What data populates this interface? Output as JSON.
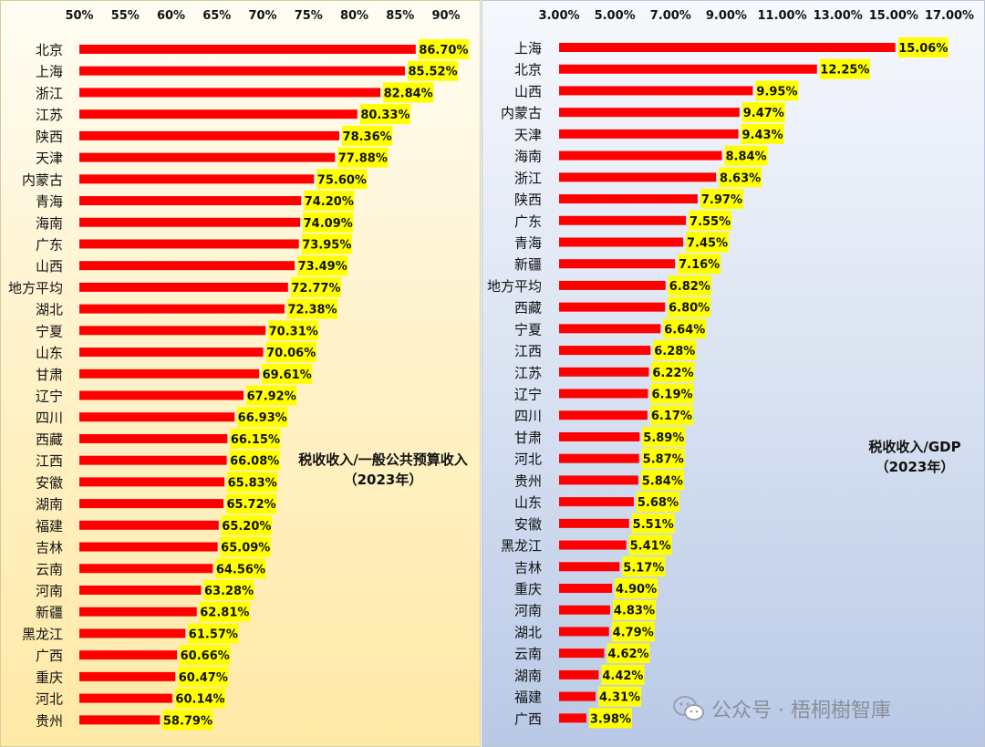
{
  "chart_data": [
    {
      "type": "bar",
      "orientation": "horizontal",
      "title": "税收收入/一般公共预算收入",
      "subtitle": "（2023年）",
      "xlim": [
        50,
        90
      ],
      "tick_labels": [
        "50%",
        "55%",
        "60%",
        "65%",
        "70%",
        "75%",
        "80%",
        "85%",
        "90%"
      ],
      "categories": [
        "北京",
        "上海",
        "浙江",
        "江苏",
        "陕西",
        "天津",
        "内蒙古",
        "青海",
        "海南",
        "广东",
        "山西",
        "地方平均",
        "湖北",
        "宁夏",
        "山东",
        "甘肃",
        "辽宁",
        "四川",
        "西藏",
        "江西",
        "安徽",
        "湖南",
        "福建",
        "吉林",
        "云南",
        "河南",
        "新疆",
        "黑龙江",
        "广西",
        "重庆",
        "河北",
        "贵州"
      ],
      "values": [
        86.7,
        85.52,
        82.84,
        80.33,
        78.36,
        77.88,
        75.6,
        74.2,
        74.09,
        73.95,
        73.49,
        72.77,
        72.38,
        70.31,
        70.06,
        69.61,
        67.92,
        66.93,
        66.15,
        66.08,
        65.83,
        65.72,
        65.2,
        65.09,
        64.56,
        63.28,
        62.81,
        61.57,
        60.66,
        60.47,
        60.14,
        58.79
      ],
      "value_labels": [
        "86.70%",
        "85.52%",
        "82.84%",
        "80.33%",
        "78.36%",
        "77.88%",
        "75.60%",
        "74.20%",
        "74.09%",
        "73.95%",
        "73.49%",
        "72.77%",
        "72.38%",
        "70.31%",
        "70.06%",
        "69.61%",
        "67.92%",
        "66.93%",
        "66.15%",
        "66.08%",
        "65.83%",
        "65.72%",
        "65.20%",
        "65.09%",
        "64.56%",
        "63.28%",
        "62.81%",
        "61.57%",
        "60.66%",
        "60.47%",
        "60.14%",
        "58.79%"
      ],
      "bar_color": "#ff0000",
      "label_bg": "#ffff00"
    },
    {
      "type": "bar",
      "orientation": "horizontal",
      "title": "税收收入/GDP",
      "subtitle": "（2023年）",
      "xlim": [
        3,
        17
      ],
      "tick_labels": [
        "3.00%",
        "5.00%",
        "7.00%",
        "9.00%",
        "11.00%",
        "13.00%",
        "15.00%",
        "17.00%"
      ],
      "categories": [
        "上海",
        "北京",
        "山西",
        "内蒙古",
        "天津",
        "海南",
        "浙江",
        "陕西",
        "广东",
        "青海",
        "新疆",
        "地方平均",
        "西藏",
        "宁夏",
        "江西",
        "江苏",
        "辽宁",
        "四川",
        "甘肃",
        "河北",
        "贵州",
        "山东",
        "安徽",
        "黑龙江",
        "吉林",
        "重庆",
        "河南",
        "湖北",
        "云南",
        "湖南",
        "福建",
        "广西"
      ],
      "values": [
        15.06,
        12.25,
        9.95,
        9.47,
        9.43,
        8.84,
        8.63,
        7.97,
        7.55,
        7.45,
        7.16,
        6.82,
        6.8,
        6.64,
        6.28,
        6.22,
        6.19,
        6.17,
        5.89,
        5.87,
        5.84,
        5.68,
        5.51,
        5.41,
        5.17,
        4.9,
        4.83,
        4.79,
        4.62,
        4.42,
        4.31,
        3.98
      ],
      "value_labels": [
        "15.06%",
        "12.25%",
        "9.95%",
        "9.47%",
        "9.43%",
        "8.84%",
        "8.63%",
        "7.97%",
        "7.55%",
        "7.45%",
        "7.16%",
        "6.82%",
        "6.80%",
        "6.64%",
        "6.28%",
        "6.22%",
        "6.19%",
        "6.17%",
        "5.89%",
        "5.87%",
        "5.84%",
        "5.68%",
        "5.51%",
        "5.41%",
        "5.17%",
        "4.90%",
        "4.83%",
        "4.79%",
        "4.62%",
        "4.42%",
        "4.31%",
        "3.98%"
      ],
      "bar_color": "#ff0000",
      "label_bg": "#ffff00"
    }
  ],
  "watermark": {
    "icon": "wechat-icon",
    "text": "公众号 · 梧桐樹智庫"
  }
}
